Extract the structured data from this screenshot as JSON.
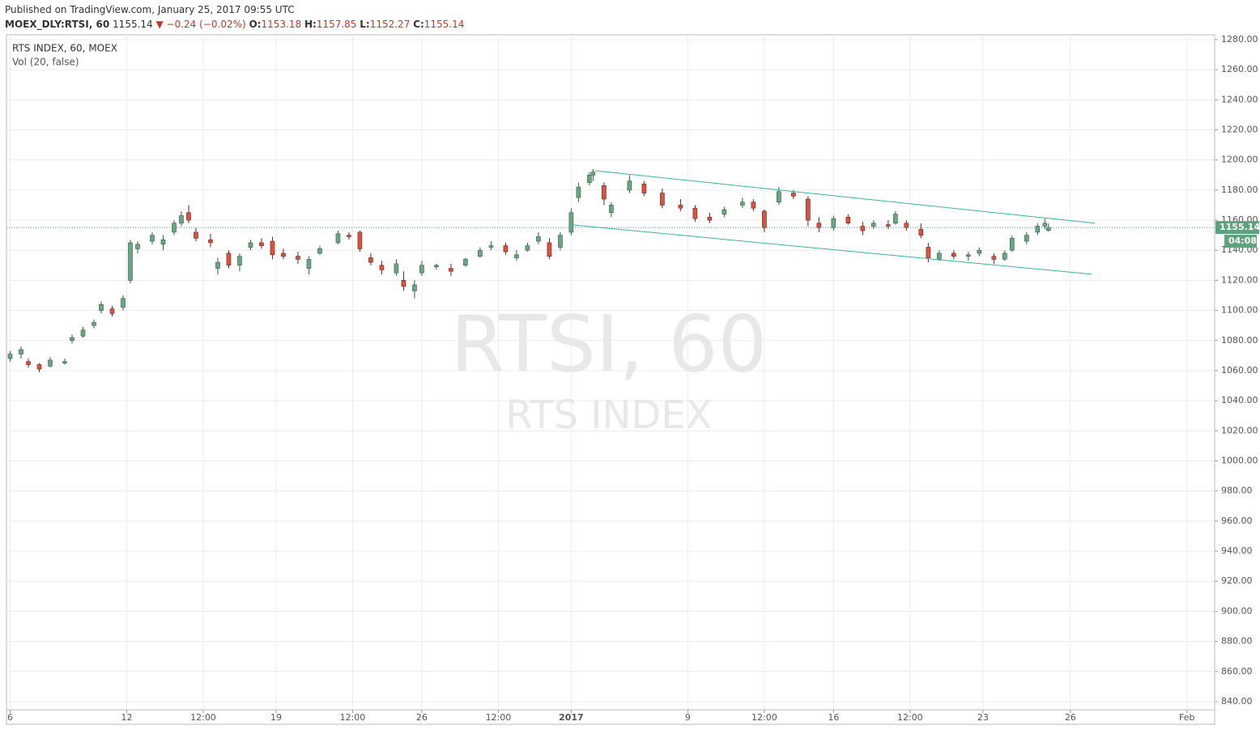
{
  "header": {
    "published": "Published on TradingView.com, January 25, 2017 09:55 UTC",
    "symbol": "MOEX_DLY:RTSI, 60",
    "change": "▼ −0.24 (−0.02%)",
    "o_label": "O:",
    "h_label": "H:",
    "l_label": "L:",
    "c_label": "C:"
  },
  "chart_data": {
    "type": "candlestick",
    "legend_title": "RTS INDEX, 60, MOEX",
    "legend_sub": "Vol (20, false)",
    "watermark": "RTSI, 60",
    "watermark_sub": "RTS INDEX",
    "countdown": "04:08",
    "up_color": "#6ba583",
    "down_color": "#d75442",
    "channel_color": "#3bb3a0",
    "grid": true,
    "xlim": [
      0,
      331.6
    ],
    "ylim": [
      834.6,
      1283.2
    ],
    "xticks": [
      {
        "value": 1,
        "label": "6"
      },
      {
        "value": 33,
        "label": "12"
      },
      {
        "value": 54,
        "label": "12:00"
      },
      {
        "value": 74,
        "label": "19"
      },
      {
        "value": 95,
        "label": "12:00"
      },
      {
        "value": 114,
        "label": "26"
      },
      {
        "value": 135,
        "label": "12:00"
      },
      {
        "value": 155,
        "label": "2017"
      },
      {
        "value": 187,
        "label": "9"
      },
      {
        "value": 208,
        "label": "12:00"
      },
      {
        "value": 227,
        "label": "16"
      },
      {
        "value": 248,
        "label": "12:00"
      },
      {
        "value": 268,
        "label": "23"
      },
      {
        "value": 292,
        "label": "26"
      },
      {
        "value": 324,
        "label": "Feb"
      }
    ],
    "yticks": [
      {
        "value": 840,
        "label": "840.00"
      },
      {
        "value": 860,
        "label": "860.00"
      },
      {
        "value": 880,
        "label": "880.00"
      },
      {
        "value": 900,
        "label": "900.00"
      },
      {
        "value": 920,
        "label": "920.00"
      },
      {
        "value": 940,
        "label": "940.00"
      },
      {
        "value": 960,
        "label": "960.00"
      },
      {
        "value": 980,
        "label": "980.00"
      },
      {
        "value": 1000,
        "label": "1000.00"
      },
      {
        "value": 1020,
        "label": "1020.00"
      },
      {
        "value": 1040,
        "label": "1040.00"
      },
      {
        "value": 1060,
        "label": "1060.00"
      },
      {
        "value": 1080,
        "label": "1080.00"
      },
      {
        "value": 1100,
        "label": "1100.00"
      },
      {
        "value": 1120,
        "label": "1120.00"
      },
      {
        "value": 1140,
        "label": "1140.00"
      },
      {
        "value": 1160,
        "label": "1160.00"
      },
      {
        "value": 1180,
        "label": "1180.00"
      },
      {
        "value": 1200,
        "label": "1200.00"
      },
      {
        "value": 1220,
        "label": "1220.00"
      },
      {
        "value": 1240,
        "label": "1240.00"
      },
      {
        "value": 1260,
        "label": "1260.00"
      },
      {
        "value": 1280,
        "label": "1280.00"
      }
    ],
    "x": [
      1,
      4,
      6,
      9,
      12,
      16,
      18,
      21,
      24,
      26,
      29,
      32,
      34,
      36,
      40,
      43,
      46,
      48,
      50,
      52,
      56,
      58,
      61,
      64,
      67,
      70,
      73,
      76,
      80,
      83,
      86,
      91,
      94,
      97,
      100,
      103,
      107,
      109,
      112,
      114,
      118,
      122,
      126,
      130,
      133,
      137,
      140,
      143,
      146,
      149,
      152,
      155,
      157,
      160,
      161,
      164,
      166,
      171,
      175,
      180,
      185,
      189,
      193,
      197,
      202,
      205,
      208,
      212,
      216,
      220,
      223,
      227,
      231,
      235,
      238,
      242,
      244,
      247,
      251,
      253,
      256,
      260,
      264,
      267,
      271,
      274,
      276,
      280,
      283,
      285,
      286
    ],
    "open": [
      1068,
      1071,
      1066,
      1064,
      1063,
      1065,
      1080,
      1083,
      1090,
      1100,
      1101,
      1102,
      1120,
      1141,
      1146,
      1144,
      1152,
      1158,
      1165,
      1152,
      1147,
      1128,
      1138,
      1130,
      1142,
      1145,
      1146,
      1138,
      1136,
      1128,
      1138,
      1145,
      1150,
      1152,
      1135,
      1130,
      1125,
      1120,
      1113,
      1125,
      1129,
      1128,
      1130,
      1136,
      1142,
      1143,
      1135,
      1140,
      1146,
      1145,
      1142,
      1152,
      1175,
      1185,
      1190,
      1183,
      1165,
      1180,
      1184,
      1178,
      1170,
      1168,
      1162,
      1164,
      1170,
      1172,
      1166,
      1172,
      1178,
      1174,
      1158,
      1155,
      1162,
      1156,
      1156,
      1157,
      1158,
      1158,
      1154,
      1142,
      1134,
      1138,
      1136,
      1138,
      1136,
      1134,
      1140,
      1146,
      1152,
      1156,
      1153.18
    ],
    "high": [
      1073,
      1076,
      1068,
      1065,
      1069,
      1068,
      1084,
      1089,
      1094,
      1106,
      1103,
      1110,
      1147,
      1146,
      1152,
      1150,
      1160,
      1166,
      1170,
      1155,
      1151,
      1135,
      1140,
      1138,
      1147,
      1148,
      1149,
      1141,
      1139,
      1136,
      1143,
      1153,
      1152,
      1153,
      1138,
      1133,
      1134,
      1126,
      1120,
      1133,
      1131,
      1131,
      1135,
      1142,
      1146,
      1145,
      1140,
      1145,
      1152,
      1148,
      1152,
      1168,
      1185,
      1192,
      1194,
      1185,
      1172,
      1190,
      1186,
      1181,
      1174,
      1170,
      1165,
      1169,
      1175,
      1174,
      1167,
      1182,
      1180,
      1176,
      1162,
      1163,
      1164,
      1159,
      1160,
      1160,
      1166,
      1160,
      1158,
      1145,
      1140,
      1140,
      1139,
      1142,
      1138,
      1140,
      1150,
      1152,
      1158,
      1161,
      1157.85
    ],
    "low": [
      1066,
      1068,
      1062,
      1059,
      1062,
      1064,
      1078,
      1082,
      1088,
      1098,
      1096,
      1100,
      1118,
      1138,
      1144,
      1140,
      1150,
      1156,
      1158,
      1146,
      1142,
      1124,
      1128,
      1126,
      1140,
      1141,
      1134,
      1134,
      1131,
      1124,
      1137,
      1144,
      1147,
      1139,
      1130,
      1124,
      1123,
      1113,
      1108,
      1123,
      1127,
      1123,
      1129,
      1135,
      1140,
      1137,
      1133,
      1139,
      1144,
      1134,
      1140,
      1150,
      1172,
      1183,
      1186,
      1170,
      1162,
      1178,
      1176,
      1168,
      1166,
      1159,
      1158,
      1162,
      1168,
      1166,
      1152,
      1170,
      1174,
      1156,
      1152,
      1153,
      1157,
      1150,
      1154,
      1154,
      1157,
      1153,
      1148,
      1132,
      1133,
      1134,
      1133,
      1136,
      1131,
      1133,
      1139,
      1144,
      1150,
      1154,
      1152.27
    ],
    "close": [
      1071,
      1074,
      1064,
      1061,
      1067,
      1066,
      1082,
      1087,
      1092,
      1104,
      1098,
      1108,
      1145,
      1144,
      1150,
      1147,
      1158,
      1163,
      1160,
      1148,
      1145,
      1132,
      1130,
      1136,
      1145,
      1143,
      1137,
      1136,
      1134,
      1134,
      1141,
      1151,
      1149,
      1141,
      1132,
      1127,
      1131,
      1116,
      1117,
      1130,
      1130,
      1126,
      1134,
      1140,
      1143,
      1139,
      1137,
      1143,
      1149,
      1136,
      1150,
      1165,
      1182,
      1190,
      1192,
      1174,
      1170,
      1186,
      1178,
      1170,
      1168,
      1161,
      1160,
      1167,
      1172,
      1168,
      1155,
      1179,
      1176,
      1160,
      1155,
      1161,
      1158,
      1153,
      1158,
      1156,
      1164,
      1155,
      1150,
      1135,
      1138,
      1136,
      1137,
      1140,
      1134,
      1138,
      1148,
      1150,
      1156,
      1158,
      1155.14
    ],
    "channel": [
      {
        "x": [
          161.6,
          298.7
        ],
        "y": [
          1192.9,
          1158.0
        ]
      },
      {
        "x": [
          155.1,
          297.8
        ],
        "y": [
          1156.9,
          1124.1
        ]
      }
    ]
  }
}
